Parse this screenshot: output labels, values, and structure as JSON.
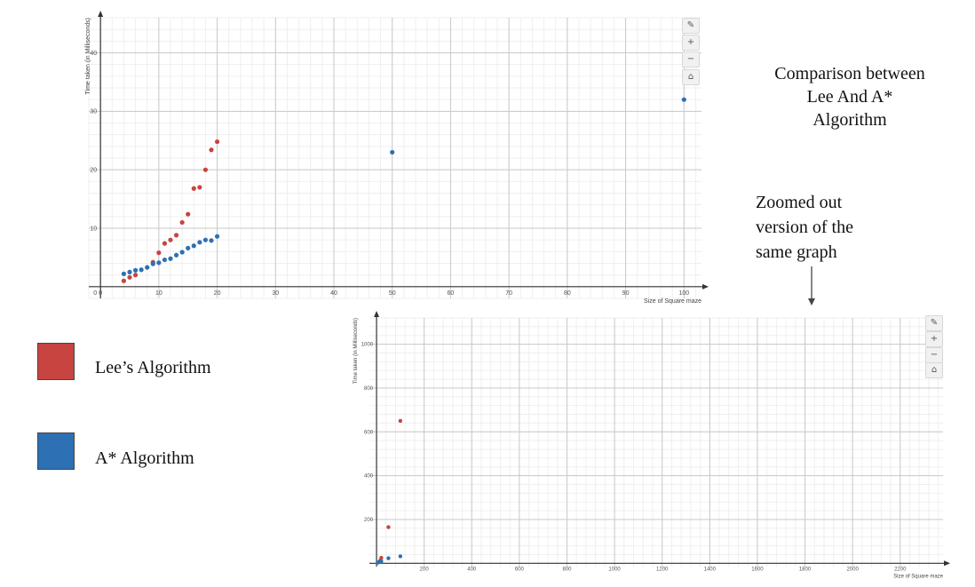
{
  "caption": {
    "title_lines": [
      "Comparison between",
      "Lee And A*",
      "Algorithm"
    ],
    "zoom_note_lines": [
      "Zoomed out",
      "version of the",
      "same graph"
    ]
  },
  "legend": {
    "items": [
      {
        "label": "Lee’s Algorithm",
        "color": "#c74440"
      },
      {
        "label": "A* Algorithm",
        "color": "#2d70b3"
      }
    ]
  },
  "toolbar": {
    "icons": [
      "wrench-icon",
      "zoom-in-icon",
      "zoom-out-icon",
      "home-icon"
    ],
    "glyphs": [
      "✎",
      "+",
      "−",
      "⌂"
    ]
  },
  "chart_data": [
    {
      "type": "scatter",
      "title": "",
      "xlabel": "Size of Square maze",
      "ylabel": "Time taken (in Milliseconds)",
      "xlim": [
        -2,
        103
      ],
      "ylim": [
        -2,
        46
      ],
      "x_ticks": [
        0,
        10,
        20,
        30,
        40,
        50,
        60,
        70,
        80,
        90,
        100
      ],
      "y_ticks": [
        10,
        20,
        30,
        40
      ],
      "x_minor_step": 2,
      "y_minor_step": 2,
      "grid": true,
      "series": [
        {
          "color": "#c74440",
          "points": [
            [
              4,
              1.0
            ],
            [
              5,
              1.6
            ],
            [
              6,
              2.0
            ],
            [
              9,
              4.2
            ],
            [
              10,
              5.8
            ],
            [
              11,
              7.4
            ],
            [
              12,
              8.0
            ],
            [
              13,
              8.8
            ],
            [
              14,
              11.0
            ],
            [
              15,
              12.4
            ],
            [
              16,
              16.8
            ],
            [
              17,
              17.0
            ],
            [
              18,
              20.0
            ],
            [
              19,
              23.4
            ],
            [
              20,
              24.8
            ]
          ]
        },
        {
          "color": "#2d70b3",
          "points": [
            [
              4,
              2.2
            ],
            [
              5,
              2.5
            ],
            [
              6,
              2.8
            ],
            [
              7,
              2.9
            ],
            [
              8,
              3.3
            ],
            [
              9,
              3.9
            ],
            [
              10,
              4.1
            ],
            [
              11,
              4.6
            ],
            [
              12,
              4.8
            ],
            [
              13,
              5.4
            ],
            [
              14,
              5.9
            ],
            [
              15,
              6.6
            ],
            [
              16,
              7.0
            ],
            [
              17,
              7.6
            ],
            [
              18,
              8.0
            ],
            [
              19,
              7.9
            ],
            [
              20,
              8.6
            ],
            [
              50,
              23.0
            ],
            [
              100,
              32.0
            ]
          ]
        }
      ]
    },
    {
      "type": "scatter",
      "title": "",
      "xlabel": "Size of Square maze",
      "ylabel": "Time taken (in Milliseconds)",
      "xlim": [
        -30,
        2380
      ],
      "ylim": [
        -15,
        1120
      ],
      "x_ticks": [
        200,
        400,
        600,
        800,
        1000,
        1200,
        1400,
        1600,
        1800,
        2000,
        2200
      ],
      "y_ticks": [
        200,
        400,
        600,
        800,
        1000
      ],
      "x_minor_step": 40,
      "y_minor_step": 40,
      "grid": true,
      "series": [
        {
          "color": "#c74440",
          "points": [
            [
              10,
              6
            ],
            [
              15,
              12
            ],
            [
              20,
              25
            ],
            [
              50,
              165
            ],
            [
              100,
              650
            ]
          ]
        },
        {
          "color": "#2d70b3",
          "points": [
            [
              5,
              3
            ],
            [
              10,
              5
            ],
            [
              15,
              7
            ],
            [
              20,
              9
            ],
            [
              50,
              23
            ],
            [
              100,
              32
            ]
          ]
        }
      ]
    }
  ]
}
